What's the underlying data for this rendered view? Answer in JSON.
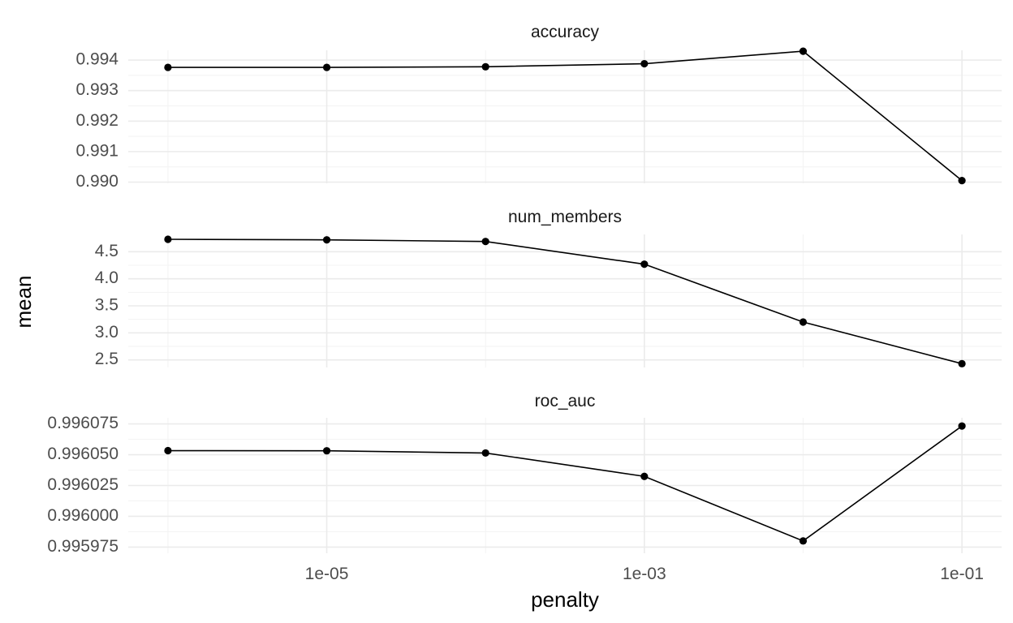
{
  "chart_data": {
    "type": "line",
    "xlabel": "penalty",
    "ylabel": "mean",
    "x_scale": "log10",
    "x": [
      1e-06,
      1e-05,
      0.0001,
      0.001,
      0.01,
      0.1
    ],
    "x_ticks": [
      1e-05,
      0.001,
      0.1
    ],
    "x_tick_labels": [
      "1e-05",
      "1e-03",
      "1e-01"
    ],
    "grid": true,
    "facets": [
      {
        "title": "accuracy",
        "values": [
          0.99376,
          0.99376,
          0.99378,
          0.99388,
          0.99429,
          0.99005
        ],
        "ylim": [
          0.98996,
          0.99432
        ],
        "y_ticks": [
          0.99,
          0.991,
          0.992,
          0.993,
          0.994
        ],
        "y_tick_labels": [
          "0.990",
          "0.991",
          "0.992",
          "0.993",
          "0.994"
        ]
      },
      {
        "title": "num_members",
        "values": [
          4.73,
          4.72,
          4.69,
          4.27,
          3.2,
          2.43
        ],
        "ylim": [
          2.36,
          4.82
        ],
        "y_ticks": [
          2.5,
          3.0,
          3.5,
          4.0,
          4.5
        ],
        "y_tick_labels": [
          "2.5",
          "3.0",
          "3.5",
          "4.0",
          "4.5"
        ]
      },
      {
        "title": "roc_auc",
        "values": [
          0.9960533,
          0.9960532,
          0.9960514,
          0.9960324,
          0.99598,
          0.9960733
        ],
        "ylim": [
          0.99597,
          0.99608
        ],
        "y_ticks": [
          0.995975,
          0.996,
          0.996025,
          0.99605,
          0.996075
        ],
        "y_tick_labels": [
          "0.995975",
          "0.996000",
          "0.996025",
          "0.996050",
          "0.996075"
        ]
      }
    ]
  }
}
